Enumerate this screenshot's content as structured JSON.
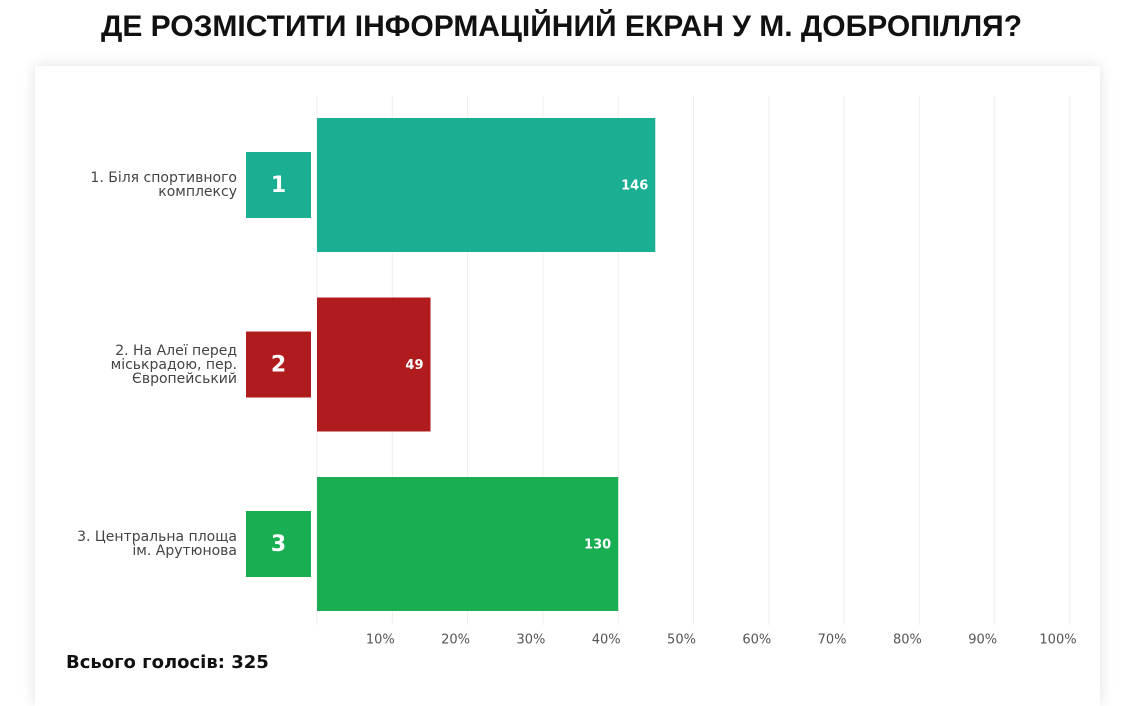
{
  "chart_data": {
    "type": "hbar",
    "title": "ДЕ РОЗМІСТИТИ ІНФОРМАЦІЙНИЙ ЕКРАН У М. ДОБРОПІЛЛЯ?",
    "categories": [
      "1. Біля спортивного комплексу",
      "2. На Алеї перед міськрадою, пер. Європейський",
      "3. Центральна площа ім. Арутюнова"
    ],
    "badges": [
      "1",
      "2",
      "3"
    ],
    "values": [
      146,
      49,
      130
    ],
    "colors": [
      "#1aaf93",
      "#b01c1e",
      "#1aae52"
    ],
    "xlim": [
      0,
      325
    ],
    "xticks": [
      {
        "value": 32.5,
        "label": "10%"
      },
      {
        "value": 65,
        "label": "20%"
      },
      {
        "value": 97.5,
        "label": "30%"
      },
      {
        "value": 130,
        "label": "40%"
      },
      {
        "value": 162.5,
        "label": "50%"
      },
      {
        "value": 195,
        "label": "60%"
      },
      {
        "value": 227.5,
        "label": "70%"
      },
      {
        "value": 260,
        "label": "80%"
      },
      {
        "value": 292.5,
        "label": "90%"
      },
      {
        "value": 325,
        "label": "100%"
      }
    ],
    "grid": true,
    "total_label": "Всього голосів: 325"
  }
}
